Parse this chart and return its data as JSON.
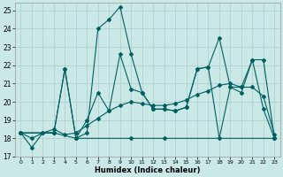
{
  "xlabel": "Humidex (Indice chaleur)",
  "xlim": [
    -0.5,
    23.5
  ],
  "ylim": [
    17,
    25.4
  ],
  "yticks": [
    17,
    18,
    19,
    20,
    21,
    22,
    23,
    24,
    25
  ],
  "xticks": [
    0,
    1,
    2,
    3,
    4,
    5,
    6,
    7,
    8,
    9,
    10,
    11,
    12,
    13,
    14,
    15,
    16,
    17,
    18,
    19,
    20,
    21,
    22,
    23
  ],
  "bg_color": "#c9e8e6",
  "grid_color": "#b0d0d0",
  "line_color": "#006060",
  "series": [
    {
      "x": [
        0,
        1,
        2,
        3,
        4,
        5,
        6,
        7,
        8,
        9,
        10,
        11,
        12,
        13,
        14,
        15,
        16,
        17,
        18,
        19,
        20,
        21,
        22,
        23
      ],
      "y": [
        18.3,
        17.5,
        18.3,
        18.3,
        21.8,
        18.0,
        18.3,
        24.0,
        24.5,
        25.2,
        22.6,
        20.5,
        19.6,
        19.6,
        19.5,
        19.7,
        21.8,
        21.9,
        23.5,
        20.8,
        20.5,
        22.3,
        19.6,
        18.0
      ]
    },
    {
      "x": [
        0,
        3,
        4,
        5,
        6,
        7,
        8,
        9,
        10,
        11,
        12,
        13,
        14,
        15,
        16,
        17,
        18,
        19,
        20,
        21,
        22,
        23
      ],
      "y": [
        18.3,
        18.3,
        21.8,
        18.0,
        19.0,
        20.5,
        19.5,
        22.6,
        20.7,
        20.5,
        19.6,
        19.6,
        19.5,
        19.7,
        21.8,
        21.9,
        18.0,
        20.8,
        20.8,
        22.3,
        22.3,
        18.0
      ]
    },
    {
      "x": [
        0,
        1,
        2,
        3,
        4,
        5,
        6,
        7,
        8,
        9,
        10,
        11,
        12,
        13,
        14,
        15,
        16,
        17,
        18,
        19,
        20,
        21,
        22,
        23
      ],
      "y": [
        18.3,
        18.0,
        18.3,
        18.5,
        18.2,
        18.3,
        18.7,
        19.1,
        19.5,
        19.8,
        20.0,
        19.9,
        19.8,
        19.8,
        19.9,
        20.1,
        20.4,
        20.6,
        20.9,
        21.0,
        20.8,
        20.8,
        20.3,
        18.2
      ]
    },
    {
      "x": [
        0,
        3,
        5,
        10,
        13,
        23
      ],
      "y": [
        18.3,
        18.3,
        18.0,
        18.0,
        18.0,
        18.0
      ]
    }
  ]
}
